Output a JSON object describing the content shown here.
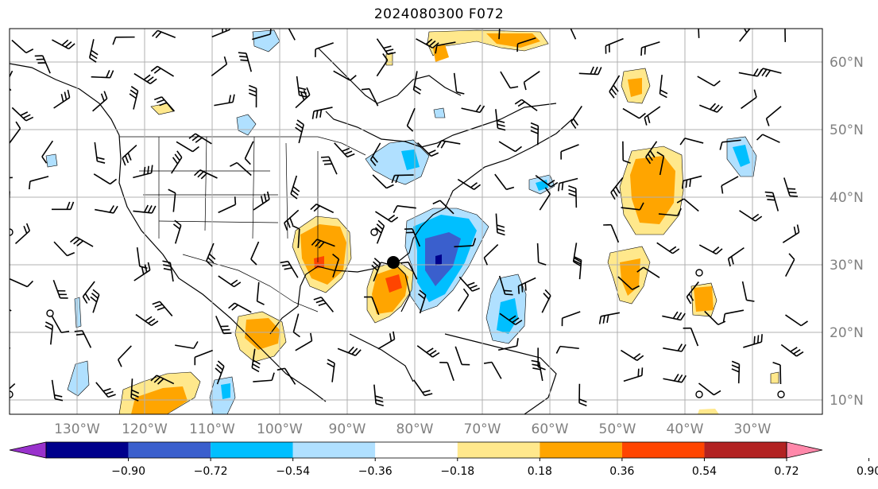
{
  "title": "2024080300 F072",
  "map": {
    "lon_labels": [
      "130°W",
      "120°W",
      "110°W",
      "100°W",
      "90°W",
      "80°W",
      "70°W",
      "60°W",
      "50°W",
      "40°W",
      "30°W"
    ],
    "lat_labels": [
      "60°N",
      "50°N",
      "40°N",
      "30°N",
      "20°N",
      "10°N"
    ],
    "marker_label": "",
    "colors": {
      "label_gray": "#808080",
      "grid": "#b0b0b0",
      "coast": "#000000"
    }
  },
  "colorbar": {
    "ticks": [
      "−0.90",
      "−0.72",
      "−0.54",
      "−0.36",
      "−0.18",
      "0.18",
      "0.36",
      "0.54",
      "0.72",
      "0.90"
    ],
    "colors": [
      "#9932CC",
      "#00008B",
      "#3a5fcd",
      "#00BFFF",
      "#b0e0ff",
      "#ffffff",
      "#FFE88C",
      "#FFA500",
      "#FF4500",
      "#B22222",
      "#FF88AA"
    ]
  }
}
